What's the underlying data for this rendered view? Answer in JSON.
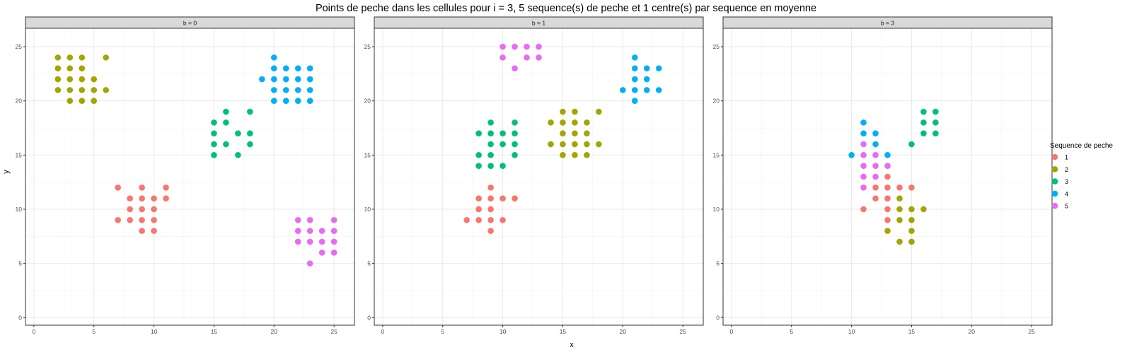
{
  "chart_data": {
    "type": "scatter",
    "title": "Points de peche dans les cellules pour i = 3, 5 sequence(s) de peche et 1 centre(s) par sequence en moyenne",
    "xlabel": "x",
    "ylabel": "y",
    "xlim": [
      -0.7,
      26.7
    ],
    "ylim": [
      -0.7,
      26.7
    ],
    "x_ticks": [
      0,
      5,
      10,
      15,
      20,
      25
    ],
    "y_ticks": [
      0,
      5,
      10,
      15,
      20,
      25
    ],
    "grid": true,
    "legend": {
      "title": "Sequence de peche",
      "position": "right",
      "entries": [
        "1",
        "2",
        "3",
        "4",
        "5"
      ]
    },
    "colors": {
      "1": "#F8766D",
      "2": "#A3A500",
      "3": "#00BF7D",
      "4": "#00B0F6",
      "5": "#E76BF3"
    },
    "panels": [
      {
        "label": "b = 0",
        "series": [
          {
            "name": "1",
            "points": [
              [
                7,
                12
              ],
              [
                9,
                12
              ],
              [
                11,
                12
              ],
              [
                8,
                11
              ],
              [
                9,
                11
              ],
              [
                10,
                11
              ],
              [
                11,
                11
              ],
              [
                8,
                10
              ],
              [
                9,
                10
              ],
              [
                10,
                10
              ],
              [
                7,
                9
              ],
              [
                8,
                9
              ],
              [
                9,
                9
              ],
              [
                10,
                9
              ],
              [
                9,
                8
              ],
              [
                10,
                8
              ]
            ]
          },
          {
            "name": "2",
            "points": [
              [
                2,
                24
              ],
              [
                3,
                24
              ],
              [
                4,
                24
              ],
              [
                6,
                24
              ],
              [
                2,
                23
              ],
              [
                3,
                23
              ],
              [
                4,
                23
              ],
              [
                2,
                22
              ],
              [
                3,
                22
              ],
              [
                4,
                22
              ],
              [
                5,
                22
              ],
              [
                2,
                21
              ],
              [
                3,
                21
              ],
              [
                4,
                21
              ],
              [
                5,
                21
              ],
              [
                6,
                21
              ],
              [
                3,
                20
              ],
              [
                4,
                20
              ],
              [
                5,
                20
              ]
            ]
          },
          {
            "name": "3",
            "points": [
              [
                16,
                19
              ],
              [
                18,
                19
              ],
              [
                15,
                18
              ],
              [
                16,
                18
              ],
              [
                15,
                17
              ],
              [
                17,
                17
              ],
              [
                18,
                17
              ],
              [
                15,
                16
              ],
              [
                16,
                16
              ],
              [
                18,
                16
              ],
              [
                15,
                15
              ],
              [
                17,
                15
              ]
            ]
          },
          {
            "name": "4",
            "points": [
              [
                20,
                24
              ],
              [
                20,
                23
              ],
              [
                21,
                23
              ],
              [
                22,
                23
              ],
              [
                23,
                23
              ],
              [
                19,
                22
              ],
              [
                20,
                22
              ],
              [
                21,
                22
              ],
              [
                22,
                22
              ],
              [
                23,
                22
              ],
              [
                20,
                21
              ],
              [
                21,
                21
              ],
              [
                22,
                21
              ],
              [
                23,
                21
              ],
              [
                20,
                20
              ],
              [
                21,
                20
              ],
              [
                22,
                20
              ],
              [
                23,
                20
              ]
            ]
          },
          {
            "name": "5",
            "points": [
              [
                22,
                9
              ],
              [
                23,
                9
              ],
              [
                25,
                9
              ],
              [
                22,
                8
              ],
              [
                23,
                8
              ],
              [
                24,
                8
              ],
              [
                25,
                8
              ],
              [
                22,
                7
              ],
              [
                23,
                7
              ],
              [
                24,
                7
              ],
              [
                25,
                7
              ],
              [
                24,
                6
              ],
              [
                25,
                6
              ],
              [
                23,
                5
              ]
            ]
          }
        ]
      },
      {
        "label": "b = 1",
        "series": [
          {
            "name": "1",
            "points": [
              [
                9,
                12
              ],
              [
                8,
                11
              ],
              [
                9,
                11
              ],
              [
                10,
                11
              ],
              [
                11,
                11
              ],
              [
                8,
                10
              ],
              [
                9,
                10
              ],
              [
                7,
                9
              ],
              [
                8,
                9
              ],
              [
                9,
                9
              ],
              [
                10,
                9
              ],
              [
                9,
                8
              ]
            ]
          },
          {
            "name": "2",
            "points": [
              [
                15,
                19
              ],
              [
                16,
                19
              ],
              [
                18,
                19
              ],
              [
                14,
                18
              ],
              [
                15,
                18
              ],
              [
                16,
                18
              ],
              [
                17,
                18
              ],
              [
                15,
                17
              ],
              [
                16,
                17
              ],
              [
                17,
                17
              ],
              [
                14,
                16
              ],
              [
                15,
                16
              ],
              [
                16,
                16
              ],
              [
                17,
                16
              ],
              [
                18,
                16
              ],
              [
                15,
                15
              ],
              [
                16,
                15
              ],
              [
                17,
                15
              ]
            ]
          },
          {
            "name": "3",
            "points": [
              [
                9,
                18
              ],
              [
                11,
                18
              ],
              [
                8,
                17
              ],
              [
                9,
                17
              ],
              [
                10,
                17
              ],
              [
                11,
                17
              ],
              [
                9,
                16
              ],
              [
                10,
                16
              ],
              [
                11,
                16
              ],
              [
                8,
                15
              ],
              [
                9,
                15
              ],
              [
                11,
                15
              ],
              [
                8,
                14
              ],
              [
                9,
                14
              ],
              [
                10,
                14
              ]
            ]
          },
          {
            "name": "4",
            "points": [
              [
                21,
                24
              ],
              [
                21,
                23
              ],
              [
                22,
                23
              ],
              [
                23,
                23
              ],
              [
                21,
                22
              ],
              [
                22,
                22
              ],
              [
                21,
                21
              ],
              [
                20,
                21
              ],
              [
                22,
                21
              ],
              [
                23,
                21
              ],
              [
                21,
                20
              ]
            ]
          },
          {
            "name": "5",
            "points": [
              [
                10,
                25
              ],
              [
                11,
                25
              ],
              [
                12,
                25
              ],
              [
                13,
                25
              ],
              [
                10,
                24
              ],
              [
                12,
                24
              ],
              [
                13,
                24
              ],
              [
                11,
                23
              ]
            ]
          }
        ]
      },
      {
        "label": "b = 3",
        "series": [
          {
            "name": "1",
            "points": [
              [
                13,
                13
              ],
              [
                12,
                12
              ],
              [
                13,
                12
              ],
              [
                14,
                12
              ],
              [
                15,
                12
              ],
              [
                12,
                11
              ],
              [
                13,
                11
              ],
              [
                11,
                10
              ],
              [
                13,
                10
              ],
              [
                13,
                9
              ]
            ]
          },
          {
            "name": "2",
            "points": [
              [
                14,
                11
              ],
              [
                14,
                10
              ],
              [
                15,
                10
              ],
              [
                16,
                10
              ],
              [
                14,
                9
              ],
              [
                15,
                9
              ],
              [
                13,
                8
              ],
              [
                15,
                8
              ],
              [
                14,
                7
              ],
              [
                15,
                7
              ]
            ]
          },
          {
            "name": "3",
            "points": [
              [
                16,
                19
              ],
              [
                17,
                19
              ],
              [
                16,
                18
              ],
              [
                17,
                18
              ],
              [
                16,
                17
              ],
              [
                17,
                17
              ],
              [
                15,
                16
              ]
            ]
          },
          {
            "name": "4",
            "points": [
              [
                11,
                18
              ],
              [
                11,
                17
              ],
              [
                12,
                17
              ],
              [
                10,
                15
              ],
              [
                13,
                15
              ],
              [
                12,
                16
              ]
            ]
          },
          {
            "name": "5",
            "points": [
              [
                11,
                16
              ],
              [
                11,
                15
              ],
              [
                12,
                15
              ],
              [
                11,
                14
              ],
              [
                12,
                14
              ],
              [
                13,
                14
              ],
              [
                11,
                13
              ],
              [
                12,
                13
              ],
              [
                11,
                12
              ]
            ]
          }
        ]
      }
    ]
  }
}
